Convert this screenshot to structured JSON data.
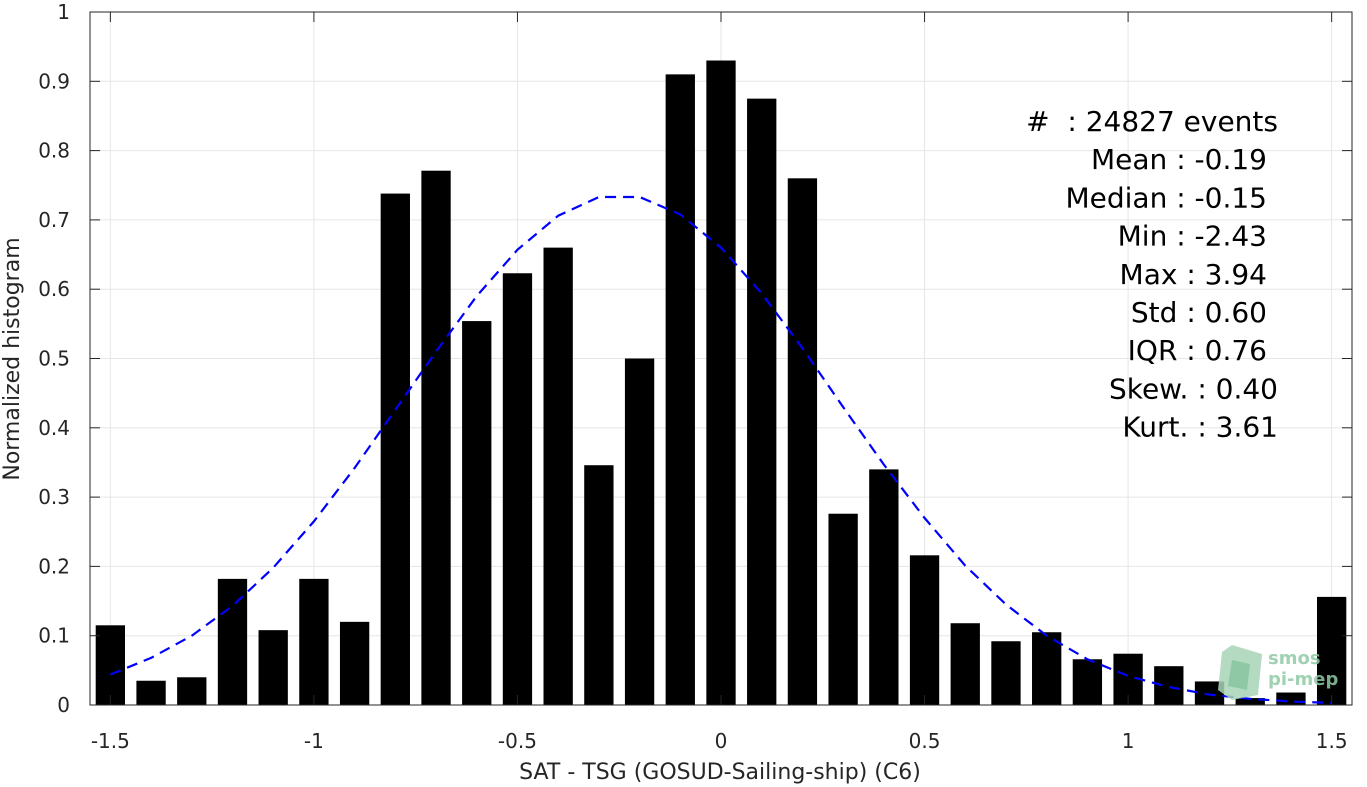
{
  "chart_data": {
    "type": "bar",
    "xlabel": "SAT - TSG (GOSUD-Sailing-ship) (C6)",
    "ylabel": "Normalized histogram",
    "xlim": [
      -1.55,
      1.55
    ],
    "ylim": [
      0,
      1
    ],
    "grid": true,
    "xticks": [
      -1.5,
      -1,
      -0.5,
      0,
      0.5,
      1,
      1.5
    ],
    "xtick_labels": [
      "-1.5",
      "-1",
      "-0.5",
      "0",
      "0.5",
      "1",
      "1.5"
    ],
    "yticks": [
      0,
      0.1,
      0.2,
      0.3,
      0.4,
      0.5,
      0.6,
      0.7,
      0.8,
      0.9,
      1
    ],
    "ytick_labels": [
      "0",
      "0.1",
      "0.2",
      "0.3",
      "0.4",
      "0.5",
      "0.6",
      "0.7",
      "0.8",
      "0.9",
      "1"
    ],
    "bar_color": "#000000",
    "x": [
      -1.5,
      -1.4,
      -1.3,
      -1.2,
      -1.1,
      -1.0,
      -0.9,
      -0.8,
      -0.7,
      -0.6,
      -0.5,
      -0.4,
      -0.3,
      -0.2,
      -0.1,
      0.0,
      0.1,
      0.2,
      0.3,
      0.4,
      0.5,
      0.6,
      0.7,
      0.8,
      0.9,
      1.0,
      1.1,
      1.2,
      1.3,
      1.4,
      1.5
    ],
    "values": [
      0.115,
      0.035,
      0.04,
      0.182,
      0.108,
      0.182,
      0.12,
      0.738,
      0.771,
      0.554,
      0.623,
      0.66,
      0.346,
      0.5,
      0.91,
      0.93,
      0.875,
      0.76,
      0.276,
      0.34,
      0.216,
      0.118,
      0.092,
      0.105,
      0.066,
      0.074,
      0.056,
      0.034,
      0.01,
      0.018,
      0.156
    ],
    "fit_curve": {
      "color": "#0000ff",
      "style": "dashed",
      "x": [
        -1.5,
        -1.4,
        -1.3,
        -1.2,
        -1.1,
        -1.0,
        -0.9,
        -0.8,
        -0.7,
        -0.6,
        -0.5,
        -0.4,
        -0.3,
        -0.2,
        -0.1,
        0.0,
        0.1,
        0.2,
        0.3,
        0.4,
        0.5,
        0.6,
        0.7,
        0.8,
        0.9,
        1.0,
        1.1,
        1.2,
        1.3,
        1.4,
        1.5
      ],
      "y": [
        0.044,
        0.068,
        0.1,
        0.143,
        0.198,
        0.265,
        0.342,
        0.426,
        0.51,
        0.59,
        0.657,
        0.706,
        0.733,
        0.733,
        0.708,
        0.66,
        0.594,
        0.515,
        0.43,
        0.347,
        0.27,
        0.201,
        0.145,
        0.1,
        0.066,
        0.042,
        0.026,
        0.015,
        0.009,
        0.005,
        0.003
      ]
    },
    "annotations": [
      "#  : 24827 events",
      "Mean : -0.19",
      "Median : -0.15",
      "Min : -2.43",
      "Max : 3.94",
      "Std : 0.60",
      "IQR : 0.76",
      "Skew. : 0.40",
      "Kurt. : 3.61"
    ]
  },
  "watermark": {
    "line1": "smos",
    "line2": "pi-mep",
    "color": "#8fcaa5"
  }
}
